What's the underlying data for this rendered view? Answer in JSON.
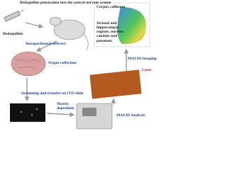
{
  "header": {
    "title": "Bedaquiline penetration into the central nervous system"
  },
  "labels": {
    "drug": "Bedaquiline",
    "delivery": "Intraperitoneal delivery",
    "organ": "Organ collection",
    "sectioning": "Sectioning and transfer on ITO-slide",
    "matrix": "Matrix deposition",
    "analysis": "MALDI Analysis",
    "laser": "Laser",
    "imaging": "MALDI Imaging",
    "corpus": "Corpus callosum",
    "regions": "Striatal and hippocampal regions, nucleus caudate and putamen."
  }
}
